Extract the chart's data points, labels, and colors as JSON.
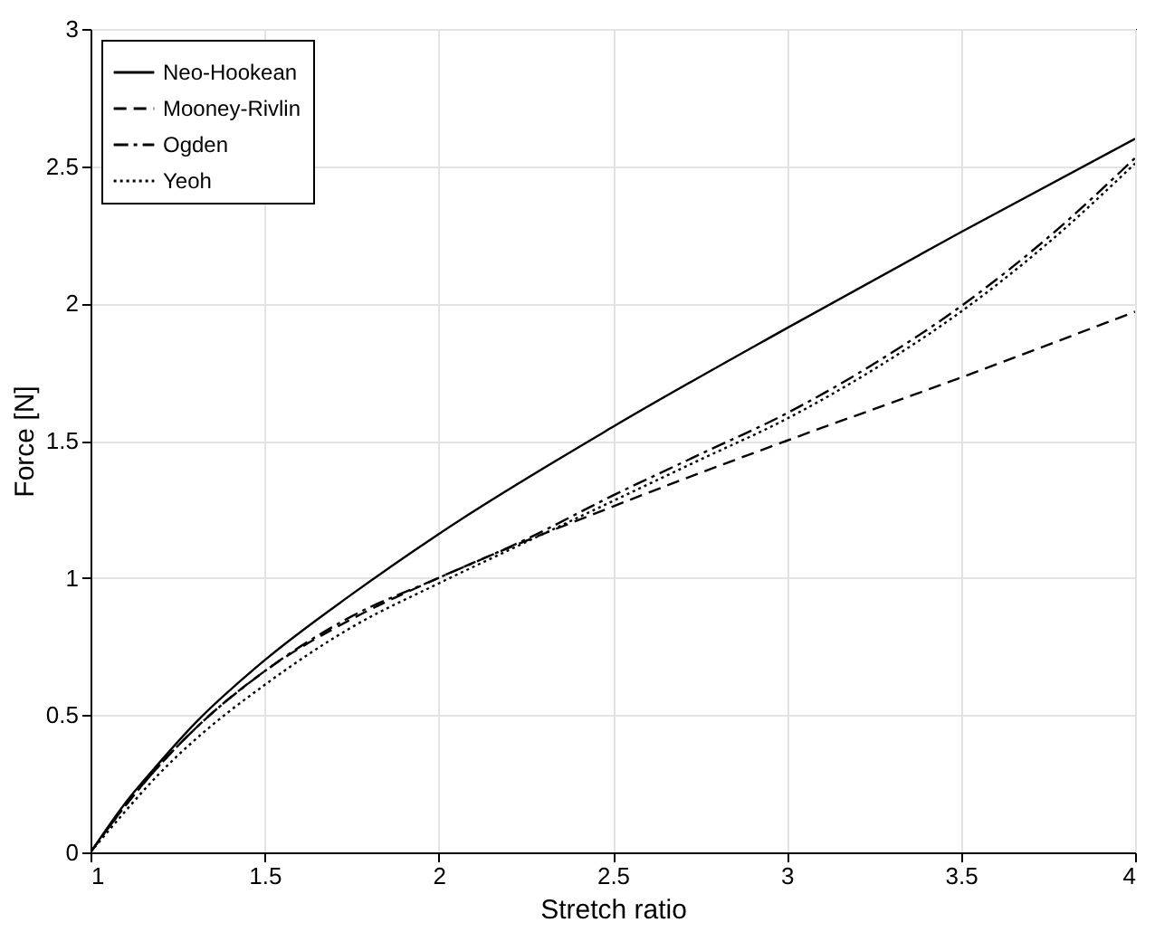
{
  "chart_data": {
    "type": "line",
    "xlabel": "Stretch ratio",
    "ylabel": "Force [N]",
    "xlim": [
      1,
      4
    ],
    "ylim": [
      0,
      3
    ],
    "xticks": [
      1,
      1.5,
      2,
      2.5,
      3,
      3.5,
      4
    ],
    "yticks": [
      0,
      0.5,
      1,
      1.5,
      2,
      2.5,
      3
    ],
    "grid": true,
    "legend": "top left",
    "marker": "none",
    "series": [
      {
        "name": "Neo-Hookean",
        "color": "#000000",
        "line_style": "solid",
        "x": [
          1,
          1.1,
          1.2,
          1.3,
          1.5,
          1.75,
          2,
          2.5,
          3,
          3.5,
          4
        ],
        "values": [
          0,
          0.18,
          0.33,
          0.47,
          0.7,
          0.94,
          1.16,
          1.55,
          1.91,
          2.26,
          2.6
        ]
      },
      {
        "name": "Mooney-Rivlin",
        "color": "#000000",
        "line_style": "dashed",
        "x": [
          1,
          1.1,
          1.2,
          1.3,
          1.5,
          1.75,
          2,
          2.5,
          3,
          3.5,
          4
        ],
        "values": [
          0,
          0.17,
          0.32,
          0.45,
          0.66,
          0.85,
          1,
          1.26,
          1.5,
          1.73,
          1.97
        ]
      },
      {
        "name": "Ogden",
        "color": "#000000",
        "line_style": "dashdot",
        "x": [
          1,
          1.1,
          1.2,
          1.3,
          1.5,
          1.75,
          2,
          2.25,
          2.5,
          2.75,
          3,
          3.25,
          3.5,
          3.75,
          4
        ],
        "values": [
          0,
          0.17,
          0.32,
          0.45,
          0.66,
          0.86,
          1,
          1.14,
          1.3,
          1.45,
          1.6,
          1.78,
          1.99,
          2.24,
          2.53
        ]
      },
      {
        "name": "Yeoh",
        "color": "#000000",
        "line_style": "dotted",
        "x": [
          1,
          1.1,
          1.2,
          1.3,
          1.5,
          1.75,
          2,
          2.25,
          2.5,
          2.75,
          3,
          3.25,
          3.5,
          3.75,
          4
        ],
        "values": [
          0,
          0.15,
          0.29,
          0.41,
          0.61,
          0.82,
          0.98,
          1.13,
          1.28,
          1.43,
          1.58,
          1.76,
          1.97,
          2.22,
          2.51
        ]
      }
    ]
  }
}
